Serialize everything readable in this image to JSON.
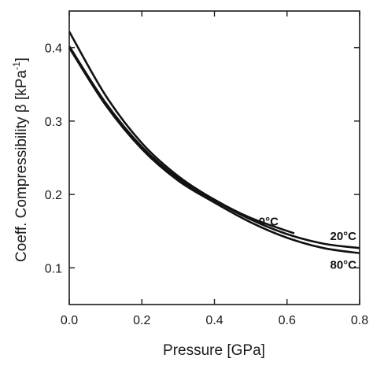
{
  "chart_data": {
    "type": "line",
    "xlabel": "Pressure [GPa]",
    "ylabel_main": "Coeff. Compressibility β [kPa",
    "ylabel_sup": "-1",
    "ylabel_end": "]",
    "xlim": [
      0.0,
      0.8
    ],
    "ylim": [
      0.05,
      0.45
    ],
    "xticks": [
      0.0,
      0.2,
      0.4,
      0.6,
      0.8
    ],
    "xtick_labels": [
      "0.0",
      "0.2",
      "0.4",
      "0.6",
      "0.8"
    ],
    "yticks": [
      0.1,
      0.2,
      0.3,
      0.4
    ],
    "ytick_labels": [
      "0.1",
      "0.2",
      "0.3",
      "0.4"
    ],
    "grid": false,
    "series": [
      {
        "name": "0°C",
        "x": [
          0.0,
          0.1,
          0.2,
          0.3,
          0.4,
          0.5,
          0.62
        ],
        "y": [
          0.422,
          0.335,
          0.27,
          0.225,
          0.193,
          0.168,
          0.147
        ]
      },
      {
        "name": "20°C",
        "x": [
          0.0,
          0.1,
          0.2,
          0.3,
          0.4,
          0.5,
          0.6,
          0.7,
          0.8
        ],
        "y": [
          0.402,
          0.325,
          0.265,
          0.222,
          0.192,
          0.166,
          0.146,
          0.133,
          0.127
        ]
      },
      {
        "name": "80°C",
        "x": [
          0.0,
          0.1,
          0.2,
          0.3,
          0.4,
          0.5,
          0.6,
          0.7,
          0.8
        ],
        "y": [
          0.4,
          0.322,
          0.262,
          0.219,
          0.189,
          0.162,
          0.141,
          0.127,
          0.12
        ]
      }
    ]
  }
}
